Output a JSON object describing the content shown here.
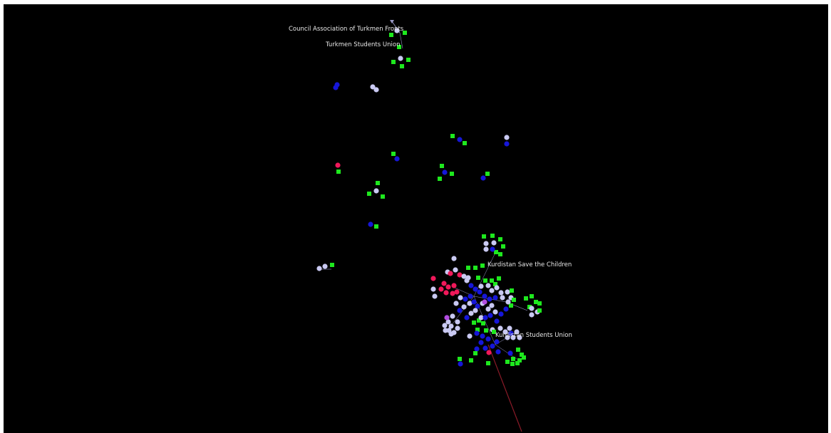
{
  "visualization": {
    "background_color": "#000000",
    "colors": {
      "green_node": "#1ee81e",
      "blue_node": "#1616d8",
      "light_node": "#c9c9f2",
      "pink_node": "#f0185a",
      "purple_node": "#b24de0",
      "edge": "#9a9ac8",
      "red_edge": "#8a1b28"
    },
    "labels": [
      "Council Association of Turkmen Fronts",
      "Turkmen Students Union",
      "Kurdistan Save the Children",
      "Kurdistan Students Union"
    ],
    "node_type_legend": {
      "square": "green_node",
      "circle": "light_node / blue_node / pink_node"
    }
  }
}
